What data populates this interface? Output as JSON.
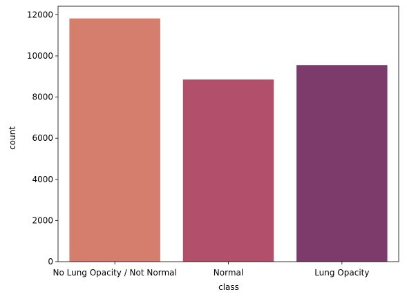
{
  "chart_data": {
    "type": "bar",
    "categories": [
      "No Lung Opacity / Not Normal",
      "Normal",
      "Lung Opacity"
    ],
    "values": [
      11821,
      8851,
      9555
    ],
    "colors": [
      "#d57e6e",
      "#b2506b",
      "#7d3b6b"
    ],
    "title": "",
    "xlabel": "class",
    "ylabel": "count",
    "ylim": [
      0,
      12415
    ],
    "yticks": [
      0,
      2000,
      4000,
      6000,
      8000,
      10000,
      12000
    ],
    "grid": false,
    "legend": "none"
  }
}
